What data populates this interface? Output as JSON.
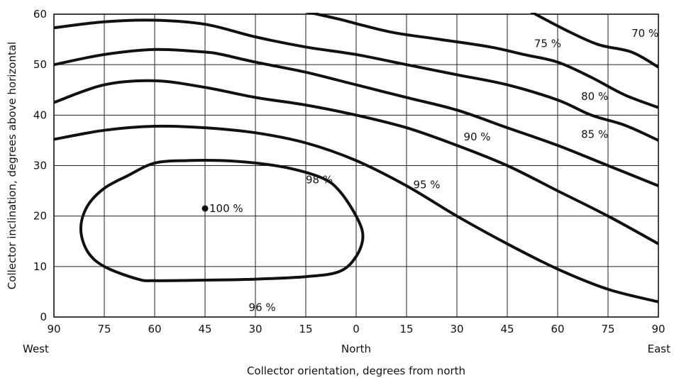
{
  "chart_data": {
    "type": "line",
    "title": "",
    "xlabel": "Collector orientation, degrees from north",
    "ylabel": "Collector inclination, degrees above horizontal",
    "x_ticks": [
      {
        "value": -90,
        "label": "90"
      },
      {
        "value": -75,
        "label": "75"
      },
      {
        "value": -60,
        "label": "60"
      },
      {
        "value": -45,
        "label": "45"
      },
      {
        "value": -30,
        "label": "30"
      },
      {
        "value": -15,
        "label": "15"
      },
      {
        "value": 0,
        "label": "0"
      },
      {
        "value": 15,
        "label": "15"
      },
      {
        "value": 30,
        "label": "30"
      },
      {
        "value": 45,
        "label": "45"
      },
      {
        "value": 60,
        "label": "60"
      },
      {
        "value": 75,
        "label": "75"
      },
      {
        "value": 90,
        "label": "90"
      }
    ],
    "x_direction_labels": [
      {
        "value": -90,
        "label": "West"
      },
      {
        "value": 0,
        "label": "North"
      },
      {
        "value": 90,
        "label": "East"
      }
    ],
    "y_ticks": [
      0,
      10,
      20,
      30,
      40,
      50,
      60
    ],
    "xlim": [
      -90,
      90
    ],
    "ylim": [
      0,
      60
    ],
    "grid": true,
    "series": [
      {
        "name": "70 %",
        "closed": false,
        "points": [
          [
            52,
            60.5
          ],
          [
            62,
            57
          ],
          [
            72,
            54
          ],
          [
            82,
            52.5
          ],
          [
            90,
            49.5
          ]
        ]
      },
      {
        "name": "75 %",
        "closed": false,
        "points": [
          [
            -15,
            60.5
          ],
          [
            -5,
            59
          ],
          [
            10,
            56.5
          ],
          [
            25,
            55
          ],
          [
            40,
            53.5
          ],
          [
            50,
            52
          ],
          [
            60,
            50.5
          ],
          [
            70,
            47.5
          ],
          [
            80,
            44
          ],
          [
            90,
            41.5
          ]
        ]
      },
      {
        "name": "80 %",
        "closed": false,
        "points": [
          [
            -90,
            57.3
          ],
          [
            -75,
            58.5
          ],
          [
            -60,
            58.8
          ],
          [
            -45,
            58
          ],
          [
            -30,
            55.5
          ],
          [
            -15,
            53.5
          ],
          [
            0,
            52
          ],
          [
            15,
            50
          ],
          [
            30,
            48
          ],
          [
            45,
            46
          ],
          [
            60,
            43
          ],
          [
            70,
            40
          ],
          [
            80,
            38
          ],
          [
            90,
            35
          ]
        ]
      },
      {
        "name": "85 %",
        "closed": false,
        "points": [
          [
            -90,
            50
          ],
          [
            -75,
            52
          ],
          [
            -60,
            53
          ],
          [
            -45,
            52.5
          ],
          [
            -40,
            52
          ],
          [
            -30,
            50.5
          ],
          [
            -15,
            48.5
          ],
          [
            0,
            46
          ],
          [
            15,
            43.5
          ],
          [
            30,
            41
          ],
          [
            45,
            37.5
          ],
          [
            60,
            34
          ],
          [
            75,
            30
          ],
          [
            90,
            26
          ]
        ]
      },
      {
        "name": "90 %",
        "closed": false,
        "points": [
          [
            -90,
            42.5
          ],
          [
            -75,
            46
          ],
          [
            -60,
            46.8
          ],
          [
            -45,
            45.5
          ],
          [
            -30,
            43.5
          ],
          [
            -15,
            42
          ],
          [
            0,
            40
          ],
          [
            15,
            37.5
          ],
          [
            30,
            34
          ],
          [
            45,
            30
          ],
          [
            60,
            25
          ],
          [
            75,
            20
          ],
          [
            90,
            14.5
          ]
        ]
      },
      {
        "name": "95 %",
        "closed": false,
        "points": [
          [
            -90,
            35.2
          ],
          [
            -75,
            37
          ],
          [
            -60,
            37.8
          ],
          [
            -45,
            37.5
          ],
          [
            -30,
            36.5
          ],
          [
            -15,
            34.5
          ],
          [
            0,
            31
          ],
          [
            15,
            26
          ],
          [
            30,
            20
          ],
          [
            45,
            14.5
          ],
          [
            60,
            9.5
          ],
          [
            75,
            5.5
          ],
          [
            90,
            3
          ]
        ]
      },
      {
        "name": "98 %",
        "closed": true,
        "points": [
          [
            -60,
            30.5
          ],
          [
            -50,
            31
          ],
          [
            -40,
            31
          ],
          [
            -30,
            30.5
          ],
          [
            -20,
            29.5
          ],
          [
            -10,
            27.5
          ],
          [
            -5,
            25
          ],
          [
            0,
            20
          ],
          [
            2,
            16
          ],
          [
            0,
            12
          ],
          [
            -5,
            9
          ],
          [
            -15,
            8
          ],
          [
            -30,
            7.5
          ],
          [
            -45,
            7.3
          ],
          [
            -60,
            7.2
          ],
          [
            -65,
            7.5
          ],
          [
            -75,
            10
          ],
          [
            -80,
            13
          ],
          [
            -82,
            17.5
          ],
          [
            -80,
            22
          ],
          [
            -75,
            25.5
          ],
          [
            -68,
            28
          ]
        ]
      }
    ],
    "point": {
      "x": -45,
      "y": 21.5,
      "label": "100 %"
    },
    "annotations": [
      {
        "text": "70 %",
        "x": 82,
        "y": 55.5
      },
      {
        "text": "75 %",
        "x": 53,
        "y": 53.5
      },
      {
        "text": "80 %",
        "x": 67,
        "y": 43
      },
      {
        "text": "85 %",
        "x": 67,
        "y": 35.5
      },
      {
        "text": "90 %",
        "x": 32,
        "y": 35
      },
      {
        "text": "95 %",
        "x": 17,
        "y": 25.5
      },
      {
        "text": "98 %",
        "x": -15,
        "y": 26.5
      },
      {
        "text": "96 %",
        "x": -32,
        "y": 1.2
      }
    ]
  }
}
